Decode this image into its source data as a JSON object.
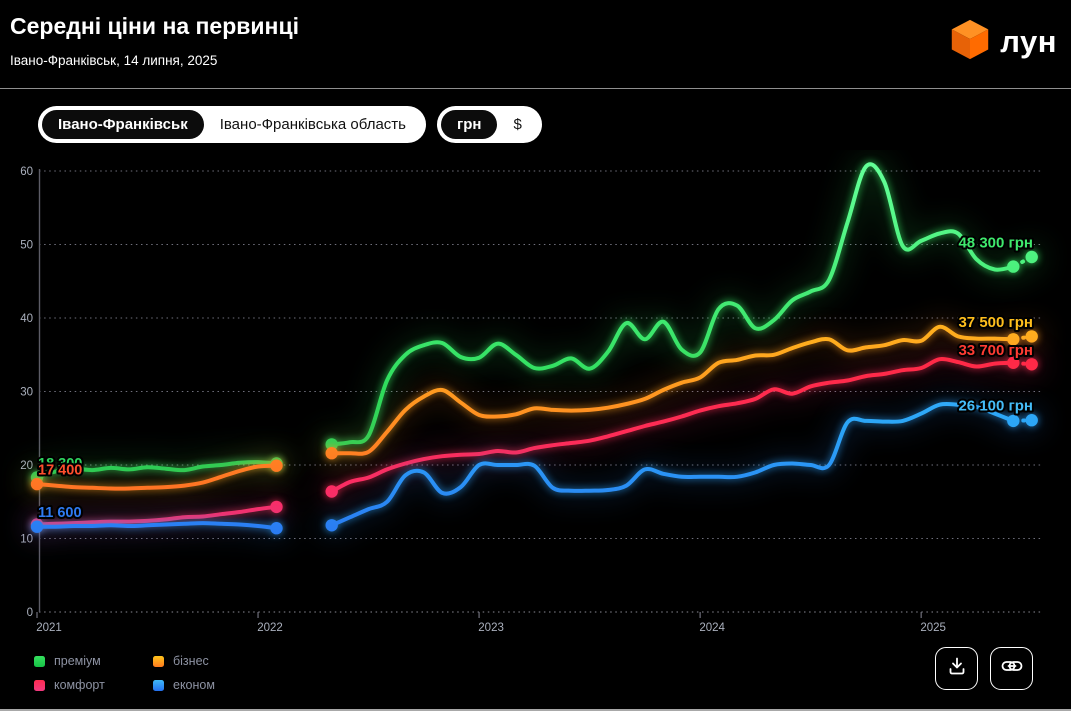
{
  "header": {
    "title": "Середні ціни на первинці",
    "subtitle": "Івано-Франківськ, 14 липня, 2025",
    "logo_text": "лун"
  },
  "toggles": {
    "location": {
      "options": [
        "Івано-Франківськ",
        "Івано-Франківська область"
      ],
      "selected": "Івано-Франківськ"
    },
    "currency": {
      "options": [
        "грн",
        "$"
      ],
      "selected": "грн"
    }
  },
  "chart_data": {
    "type": "line",
    "title": "Середні ціни на первинці",
    "x_unit": "month",
    "x_start": "2021-01",
    "x_end": "2025-07",
    "x_tick_labels": [
      "2021",
      "2022",
      "2023",
      "2024",
      "2025"
    ],
    "y_ticks": [
      0,
      10,
      20,
      30,
      40,
      50,
      60
    ],
    "y_values_in": "thousands of hryvnia",
    "data_gap": "2022-03 .. 2022-04",
    "series": [
      {
        "key": "premium",
        "name": "преміум",
        "color": "#2edd5c",
        "glow": "rgba(57,240,103,0.85)",
        "stops": [
          [
            0,
            "#62ff96"
          ],
          [
            0.5,
            "#2edd5c"
          ],
          [
            1,
            "#1cb24a"
          ]
        ],
        "values": [
          18.3,
          19.1,
          19.5,
          19.3,
          19.6,
          19.4,
          19.7,
          19.5,
          19.3,
          19.8,
          20.0,
          20.3,
          20.4,
          20.2,
          null,
          null,
          22.8,
          23.1,
          24.0,
          31.5,
          35.0,
          36.3,
          36.6,
          34.7,
          34.6,
          36.5,
          35.0,
          33.2,
          33.5,
          34.5,
          33.1,
          35.4,
          39.3,
          37.1,
          39.5,
          35.7,
          35.3,
          41.2,
          41.7,
          38.6,
          39.7,
          42.4,
          43.6,
          45.2,
          53.0,
          60.6,
          58.5,
          49.8,
          50.5,
          51.5,
          51.5,
          48.0,
          46.6,
          47.0,
          48.3
        ]
      },
      {
        "key": "biznes",
        "name": "бізнес",
        "color": "#ffae1e",
        "glow": "rgba(255,158,31,0.8)",
        "stops": [
          [
            0,
            "#ffd619"
          ],
          [
            0.38,
            "#ffae1e"
          ],
          [
            0.78,
            "#ff6a25"
          ],
          [
            1,
            "#ff3d2b"
          ]
        ],
        "values": [
          17.4,
          17.2,
          17.0,
          16.9,
          16.8,
          16.8,
          16.9,
          17.0,
          17.2,
          17.6,
          18.4,
          19.2,
          19.8,
          19.9,
          null,
          null,
          21.6,
          21.6,
          21.8,
          24.5,
          27.5,
          29.3,
          30.2,
          28.5,
          26.8,
          26.6,
          26.9,
          27.7,
          27.5,
          27.4,
          27.5,
          27.8,
          28.3,
          29.0,
          30.2,
          31.2,
          31.9,
          33.9,
          34.3,
          34.9,
          35.0,
          35.9,
          36.7,
          37.1,
          35.6,
          36.0,
          36.3,
          37.0,
          36.9,
          38.8,
          37.5,
          37.2,
          37.2,
          37.1,
          37.5
        ]
      },
      {
        "key": "komfort",
        "name": "комфорт",
        "color": "#ff2d55",
        "glow": "rgba(255,45,85,0.8)",
        "stops": [
          [
            0,
            "#ff1e1e"
          ],
          [
            0.5,
            "#ff2b4d"
          ],
          [
            0.82,
            "#fa2e6e"
          ],
          [
            1,
            "#f43b8a"
          ]
        ],
        "values": [
          11.9,
          12.0,
          12.1,
          12.2,
          12.3,
          12.3,
          12.4,
          12.6,
          12.9,
          13.0,
          13.3,
          13.6,
          14.0,
          14.3,
          null,
          null,
          16.4,
          17.7,
          18.3,
          19.4,
          20.2,
          20.8,
          21.2,
          21.4,
          21.5,
          21.9,
          21.7,
          22.3,
          22.7,
          23.0,
          23.3,
          23.9,
          24.6,
          25.3,
          25.9,
          26.6,
          27.4,
          28.0,
          28.4,
          29.0,
          30.3,
          29.7,
          30.7,
          31.2,
          31.5,
          32.1,
          32.4,
          32.9,
          33.2,
          34.4,
          34.0,
          33.4,
          33.8,
          33.9,
          33.7
        ]
      },
      {
        "key": "ekonom",
        "name": "економ",
        "color": "#2aa0f7",
        "glow": "rgba(42,160,247,0.8)",
        "stops": [
          [
            0,
            "#5fd4ff"
          ],
          [
            0.58,
            "#2ba5f7"
          ],
          [
            0.85,
            "#2a77f2"
          ],
          [
            1,
            "#2f63e9"
          ]
        ],
        "values": [
          11.6,
          11.6,
          11.7,
          11.7,
          11.8,
          11.7,
          11.8,
          11.9,
          12.0,
          12.1,
          12.0,
          11.9,
          11.7,
          11.4,
          null,
          null,
          11.8,
          12.9,
          14.0,
          15.0,
          18.6,
          19.0,
          16.2,
          17.0,
          20.0,
          20.0,
          20.0,
          19.9,
          16.9,
          16.5,
          16.5,
          16.6,
          17.2,
          19.4,
          18.8,
          18.4,
          18.4,
          18.4,
          18.4,
          19.0,
          20.0,
          20.2,
          20.0,
          20.0,
          25.8,
          26.0,
          25.9,
          26.0,
          27.0,
          28.2,
          28.2,
          27.9,
          27.0,
          26.0,
          26.1
        ]
      }
    ],
    "start_labels": [
      {
        "series": "преміум",
        "text": "18 300",
        "color": "#2fd55f"
      },
      {
        "series": "бізнес",
        "text": "17 400",
        "color": "#ff4f2d"
      },
      {
        "series": "економ",
        "text": "11 600",
        "color": "#2f7bf2"
      }
    ],
    "end_labels": [
      {
        "series": "преміум",
        "text": "48 300 грн",
        "color": "#3fe96d"
      },
      {
        "series": "бізнес",
        "text": "37 500 грн",
        "color": "#ffbf1d"
      },
      {
        "series": "комфорт",
        "text": "33 700 грн",
        "color": "#ff3c33"
      },
      {
        "series": "економ",
        "text": "26 100 грн",
        "color": "#45bdf8"
      }
    ],
    "legend_position": "bottom-left",
    "grid": "dotted horizontal"
  },
  "legend": [
    {
      "label": "преміум",
      "color_top": "#35e05e",
      "color_bottom": "#17c247"
    },
    {
      "label": "бізнес",
      "color_top": "#ffc51c",
      "color_bottom": "#ff7a1e"
    },
    {
      "label": "комфорт",
      "color_top": "#ff2b50",
      "color_bottom": "#f23a80"
    },
    {
      "label": "економ",
      "color_top": "#3fb9f8",
      "color_bottom": "#2470f0"
    }
  ],
  "actions": {
    "download": "download-chart",
    "share_link": "copy-link"
  }
}
